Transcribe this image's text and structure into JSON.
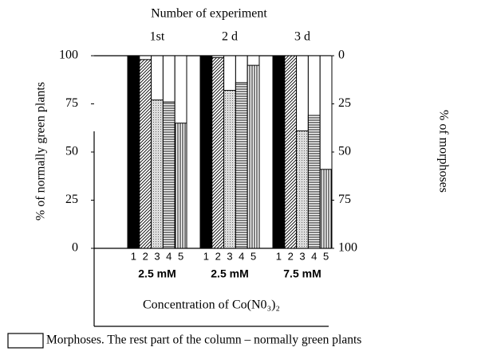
{
  "chart_data": {
    "type": "bar",
    "title": "Number of experiment",
    "categories": [
      "1st",
      "2 d",
      "3 d"
    ],
    "group_labels": [
      "2.5  mM",
      "2.5  mM",
      "7.5  mM"
    ],
    "x_label": "Concentration of Co(N0₃)₂",
    "y_label": "% of normally green plants",
    "y2_label": "% of morphoses",
    "series": [
      {
        "name": "1",
        "values": [
          100,
          100,
          100
        ]
      },
      {
        "name": "2",
        "values": [
          98,
          99,
          100
        ]
      },
      {
        "name": "3",
        "values": [
          77,
          82,
          61
        ]
      },
      {
        "name": "4",
        "values": [
          76,
          86,
          69
        ]
      },
      {
        "name": "5",
        "values": [
          65,
          95,
          41
        ]
      }
    ],
    "ylim": [
      0,
      100
    ],
    "yticks": [
      0,
      25,
      50,
      75,
      100
    ],
    "y2lim": [
      100,
      0
    ],
    "y2ticks": [
      0,
      25,
      50,
      75,
      100
    ],
    "legend": "Morphoses. The rest part of the column – normally green plants"
  }
}
